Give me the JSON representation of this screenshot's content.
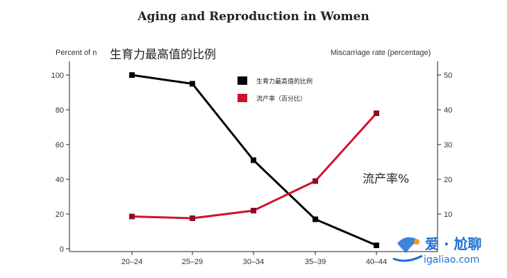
{
  "header": {
    "title": "Aging and Reproduction in Women",
    "ylabel_left": "Percent of n",
    "ylabel_left_overlay": "生育力最高值的比例",
    "ylabel_right": "Miscarriage rate (percentage)",
    "annotation": "流产率%"
  },
  "watermark": {
    "line1": "爱 · 尬聊",
    "line2": "igaliao.com"
  },
  "colors": {
    "fertility": "#000000",
    "miscarriage": "#d0112b",
    "watermark": "#1b6fd6"
  },
  "chart_data": {
    "type": "line",
    "title": "Aging and Reproduction in Women",
    "xlabel": "",
    "categories": [
      "20–24",
      "25–29",
      "30–34",
      "35–39",
      "40–44"
    ],
    "y_left": {
      "label": "Percent of n",
      "ticks": [
        0,
        20,
        40,
        60,
        80,
        100
      ],
      "range": [
        0,
        100
      ]
    },
    "y_right": {
      "label": "Miscarriage rate (percentage)",
      "ticks": [
        10,
        20,
        30,
        40,
        50
      ],
      "range": [
        0,
        50
      ]
    },
    "grid": false,
    "legend_position": "top-center",
    "series": [
      {
        "name": "生育力最高值的比例",
        "axis": "left",
        "color": "#000000",
        "marker": "square",
        "values": [
          100,
          95,
          51,
          17,
          2
        ]
      },
      {
        "name": "流产率（百分比）",
        "axis": "right",
        "color": "#d0112b",
        "marker": "square",
        "values": [
          9.3,
          8.8,
          11,
          19.5,
          39
        ]
      }
    ]
  }
}
